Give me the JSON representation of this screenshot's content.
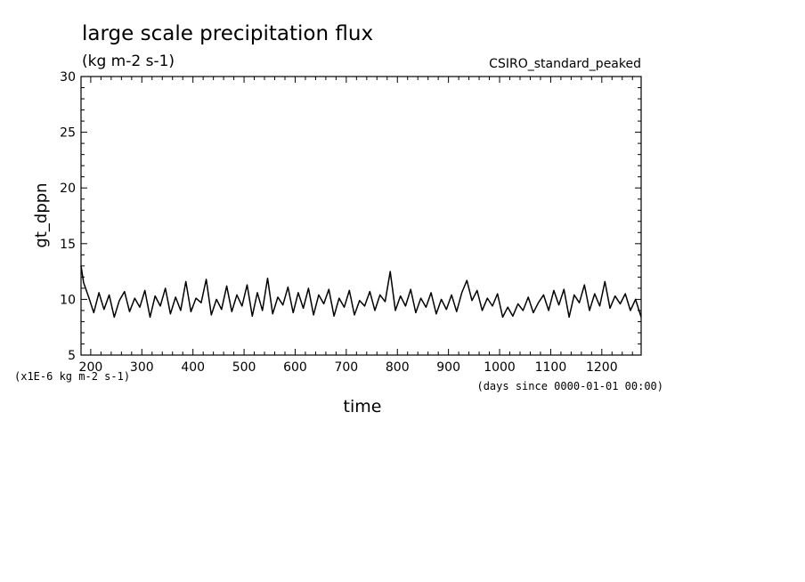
{
  "chart_data": {
    "type": "line",
    "title": "large scale precipitation flux",
    "subtitle": "(kg m-2 s-1)",
    "run_label": "CSIRO_standard_peaked",
    "xlabel": "time",
    "x_units": "(days since 0000-01-01 00:00)",
    "ylabel": "gt_dppn",
    "y_units": "(x1E-6 kg m-2 s-1)",
    "xlim": [
      181,
      1277
    ],
    "ylim": [
      5,
      30
    ],
    "x_ticks": [
      200,
      300,
      400,
      500,
      600,
      700,
      800,
      900,
      1000,
      1100,
      1200
    ],
    "y_ticks": [
      5,
      10,
      15,
      20,
      25,
      30
    ],
    "grid": false,
    "series": [
      {
        "x": [
          181,
          186,
          196,
          206,
          216,
          226,
          236,
          246,
          256,
          266,
          276,
          286,
          296,
          306,
          316,
          326,
          336,
          346,
          356,
          366,
          376,
          386,
          396,
          406,
          416,
          426,
          436,
          446,
          456,
          466,
          476,
          486,
          496,
          506,
          516,
          526,
          536,
          546,
          556,
          566,
          576,
          586,
          596,
          606,
          616,
          626,
          636,
          646,
          656,
          666,
          676,
          686,
          696,
          706,
          716,
          726,
          736,
          746,
          756,
          766,
          776,
          786,
          796,
          806,
          816,
          826,
          836,
          846,
          856,
          866,
          876,
          886,
          896,
          906,
          916,
          926,
          936,
          946,
          956,
          966,
          976,
          986,
          996,
          1006,
          1016,
          1026,
          1036,
          1046,
          1056,
          1066,
          1076,
          1086,
          1096,
          1106,
          1116,
          1126,
          1136,
          1146,
          1156,
          1166,
          1176,
          1186,
          1196,
          1206,
          1216,
          1226,
          1236,
          1246,
          1256,
          1266,
          1277
        ],
        "y": [
          13.0,
          11.5,
          10.2,
          8.8,
          10.6,
          9.1,
          10.4,
          8.4,
          9.9,
          10.7,
          8.9,
          10.1,
          9.3,
          10.8,
          8.4,
          10.3,
          9.4,
          11.0,
          8.7,
          10.2,
          9.0,
          11.6,
          8.9,
          10.1,
          9.7,
          11.8,
          8.6,
          10.0,
          9.1,
          11.2,
          8.9,
          10.4,
          9.4,
          11.3,
          8.5,
          10.6,
          9.0,
          11.9,
          8.7,
          10.2,
          9.5,
          11.1,
          8.8,
          10.6,
          9.2,
          11.0,
          8.6,
          10.4,
          9.6,
          10.9,
          8.5,
          10.1,
          9.3,
          10.8,
          8.6,
          9.9,
          9.4,
          10.7,
          9.0,
          10.4,
          9.8,
          12.5,
          9.0,
          10.3,
          9.4,
          10.9,
          8.8,
          10.1,
          9.3,
          10.6,
          8.7,
          10.0,
          9.1,
          10.4,
          8.9,
          10.6,
          11.7,
          9.9,
          10.8,
          9.0,
          10.1,
          9.4,
          10.5,
          8.4,
          9.3,
          8.5,
          9.6,
          9.0,
          10.2,
          8.8,
          9.7,
          10.4,
          9.0,
          10.8,
          9.5,
          10.9,
          8.4,
          10.4,
          9.7,
          11.3,
          9.0,
          10.5,
          9.4,
          11.6,
          9.2,
          10.3,
          9.6,
          10.5,
          9.0,
          10.0,
          8.4
        ]
      }
    ]
  }
}
